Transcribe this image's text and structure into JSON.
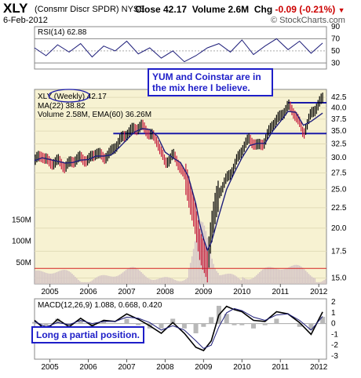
{
  "header": {
    "symbol": "XLY",
    "name": "(Consmr Discr SPDR)",
    "exchange": "NYSE",
    "date": "6-Feb-2012",
    "close": "Close 42.17",
    "volume": "Volume 2.6M",
    "chg_label": "Chg",
    "chg": "-0.09 (-0.21%)",
    "chg_arrow": "▼",
    "brand": "© StockCharts.com"
  },
  "colors": {
    "price_bg": "#f7f2d2",
    "line": "#1e1e7a",
    "bar_up": "#000000",
    "bar_down": "#c41a3b",
    "volume": "#d6c7c7",
    "ema": "#d62222",
    "annotation": "#1e1ec8"
  },
  "annotations": {
    "top": "YUM and Coinstar are in the mix here I believe.",
    "bottom": "Long a partial position."
  },
  "chart_data": [
    {
      "type": "line",
      "title": "RSI(14) 62.88",
      "x_years": [
        2004.6,
        2004.9,
        2005.2,
        2005.5,
        2005.8,
        2006.1,
        2006.4,
        2006.7,
        2007.0,
        2007.3,
        2007.6,
        2007.9,
        2008.2,
        2008.5,
        2008.8,
        2009.1,
        2009.4,
        2009.7,
        2010.0,
        2010.3,
        2010.6,
        2010.9,
        2011.2,
        2011.5,
        2011.8,
        2012.1
      ],
      "values": [
        55,
        42,
        60,
        48,
        62,
        40,
        58,
        50,
        66,
        45,
        55,
        38,
        50,
        32,
        42,
        55,
        62,
        48,
        68,
        44,
        58,
        70,
        52,
        66,
        46,
        62.88
      ],
      "yticks": [
        90,
        70,
        50,
        30
      ],
      "reference_lines": [
        30,
        50,
        70
      ]
    },
    {
      "type": "line",
      "title": "XLY (Weekly) 42.17",
      "legend": [
        "XLY (Weekly) 42.17",
        "MA(22) 38.82",
        "Volume 2.58M, EMA(60) 36.26M"
      ],
      "x_years": [
        2004.6,
        2004.8,
        2005.0,
        2005.2,
        2005.4,
        2005.6,
        2005.8,
        2006.0,
        2006.2,
        2006.4,
        2006.6,
        2006.8,
        2007.0,
        2007.2,
        2007.4,
        2007.6,
        2007.8,
        2008.0,
        2008.2,
        2008.4,
        2008.6,
        2008.8,
        2008.9,
        2009.0,
        2009.1,
        2009.2,
        2009.4,
        2009.6,
        2009.8,
        2010.0,
        2010.2,
        2010.4,
        2010.6,
        2010.8,
        2011.0,
        2011.2,
        2011.4,
        2011.6,
        2011.8,
        2012.1
      ],
      "values": [
        29.5,
        30.5,
        29.0,
        29.5,
        28.5,
        29.5,
        30.0,
        29.5,
        31.0,
        30.0,
        31.0,
        33.0,
        34.5,
        35.5,
        36.0,
        34.5,
        33.0,
        29.0,
        30.5,
        28.5,
        25.5,
        20.5,
        18.5,
        17.0,
        16.0,
        20.0,
        24.5,
        26.5,
        28.5,
        31.5,
        33.5,
        32.0,
        33.0,
        36.5,
        38.0,
        40.5,
        38.5,
        34.5,
        38.5,
        42.17
      ],
      "ma22": [
        29.5,
        30.0,
        29.7,
        29.4,
        29.1,
        29.2,
        29.6,
        29.7,
        30.3,
        30.3,
        30.5,
        31.8,
        33.3,
        34.8,
        35.5,
        35.3,
        34.0,
        31.0,
        30.0,
        29.2,
        27.0,
        23.0,
        20.5,
        18.8,
        17.6,
        18.4,
        21.5,
        25.0,
        27.5,
        30.0,
        32.2,
        32.6,
        32.6,
        35.0,
        37.0,
        39.2,
        39.0,
        36.2,
        37.0,
        38.82
      ],
      "yticks": [
        42.5,
        40.0,
        37.5,
        35.0,
        32.5,
        30.0,
        27.5,
        25.0,
        22.5,
        20.0,
        17.5,
        15.0
      ],
      "y_scale": "log",
      "ylim": [
        14.5,
        44.5
      ],
      "horizontal_lines": [
        34.5,
        41.2
      ],
      "volume_ticks": [
        "150M",
        "100M",
        "50M"
      ],
      "volume_max": 180,
      "volume_ema60": 36.26
    },
    {
      "type": "line",
      "title": "MACD(12,26,9) 1.088, 0.668, 0.420",
      "x_years": [
        2004.6,
        2004.9,
        2005.2,
        2005.5,
        2005.8,
        2006.1,
        2006.4,
        2006.7,
        2007.0,
        2007.3,
        2007.6,
        2007.9,
        2008.2,
        2008.5,
        2008.8,
        2009.0,
        2009.2,
        2009.4,
        2009.6,
        2009.8,
        2010.0,
        2010.3,
        2010.6,
        2010.9,
        2011.2,
        2011.5,
        2011.8,
        2012.1
      ],
      "macd": [
        0.3,
        -0.6,
        0.4,
        -0.3,
        0.5,
        -0.2,
        0.3,
        0.2,
        0.9,
        0.4,
        -0.2,
        -0.9,
        0.1,
        -0.9,
        -2.2,
        -2.5,
        -1.6,
        0.8,
        1.6,
        1.3,
        1.1,
        0.3,
        0.2,
        1.1,
        0.9,
        0.1,
        -1.0,
        1.088
      ],
      "signal": [
        0.2,
        -0.3,
        0.1,
        -0.1,
        0.3,
        0.0,
        0.2,
        0.2,
        0.6,
        0.5,
        0.1,
        -0.6,
        -0.2,
        -0.6,
        -1.6,
        -2.3,
        -2.0,
        -0.3,
        1.0,
        1.4,
        1.2,
        0.6,
        0.3,
        0.8,
        0.9,
        0.3,
        -0.6,
        0.668
      ],
      "yticks": [
        2,
        1,
        0,
        -1,
        -2,
        -3
      ],
      "ylim": [
        -3.3,
        2.3
      ]
    }
  ],
  "x_axis": {
    "labels": [
      "2005",
      "2006",
      "2007",
      "2008",
      "2009",
      "2010",
      "2011",
      "2012"
    ],
    "positions": [
      2005.0,
      2006.0,
      2007.0,
      2008.0,
      2009.0,
      2010.0,
      2011.0,
      2012.0
    ]
  }
}
